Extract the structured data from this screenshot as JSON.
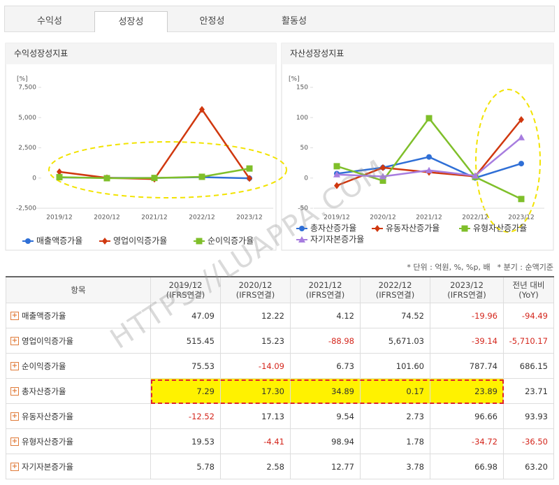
{
  "tabs": {
    "items": [
      "수익성",
      "성장성",
      "안정성",
      "활동성"
    ],
    "active": 1
  },
  "chart_data": [
    {
      "type": "line",
      "title": "수익성장성지표",
      "y_label": "[%]",
      "categories": [
        "2019/12",
        "2020/12",
        "2021/12",
        "2022/12",
        "2023/12"
      ],
      "ylim": [
        -2500,
        7500
      ],
      "yticks": [
        {
          "value": 7500,
          "label": "7,500"
        },
        {
          "value": 5000,
          "label": "5,000"
        },
        {
          "value": 2500,
          "label": "2,500"
        },
        0,
        {
          "value": -2500,
          "label": "-2,500"
        }
      ],
      "series": [
        {
          "name": "매출액증가율",
          "color": "#2f6fd6",
          "marker": "circle",
          "values": [
            47.09,
            12.22,
            4.12,
            74.52,
            -19.96
          ]
        },
        {
          "name": "영업이익증가율",
          "color": "#d0380f",
          "marker": "diamond",
          "values": [
            515.45,
            15.23,
            -88.98,
            5671.03,
            -39.14
          ]
        },
        {
          "name": "순이익증가율",
          "color": "#7fbf2a",
          "marker": "square",
          "values": [
            75.53,
            -14.09,
            6.73,
            101.6,
            787.74
          ]
        }
      ]
    },
    {
      "type": "line",
      "title": "자산성장성지표",
      "y_label": "[%]",
      "categories": [
        "2019/12",
        "2020/12",
        "2021/12",
        "2022/12",
        "2023/12"
      ],
      "ylim": [
        -50,
        150
      ],
      "yticks": [
        150,
        100,
        50,
        0,
        -50
      ],
      "series": [
        {
          "name": "총자산증가율",
          "color": "#2f6fd6",
          "marker": "circle",
          "values": [
            7.29,
            17.3,
            34.89,
            0.17,
            23.89
          ]
        },
        {
          "name": "유동자산증가율",
          "color": "#d0380f",
          "marker": "diamond",
          "values": [
            -12.52,
            17.13,
            9.54,
            2.73,
            96.66
          ]
        },
        {
          "name": "유형자산증가율",
          "color": "#7fbf2a",
          "marker": "square",
          "values": [
            19.53,
            -4.41,
            98.94,
            1.78,
            -34.72
          ]
        },
        {
          "name": "자기자본증가율",
          "color": "#a77ddf",
          "marker": "triangle",
          "values": [
            5.78,
            2.58,
            12.77,
            3.78,
            66.98
          ]
        }
      ]
    }
  ],
  "notes": [
    "* 단위 : 억원, %, %p, 배",
    "* 분기 : 순액기준"
  ],
  "watermark": "HTTPS://LUAPPA.COM",
  "table": {
    "header": "항목",
    "columns": [
      {
        "period": "2019/12",
        "basis": "(IFRS연결)"
      },
      {
        "period": "2020/12",
        "basis": "(IFRS연결)"
      },
      {
        "period": "2021/12",
        "basis": "(IFRS연결)"
      },
      {
        "period": "2022/12",
        "basis": "(IFRS연결)"
      },
      {
        "period": "2023/12",
        "basis": "(IFRS연결)"
      },
      {
        "period": "전년 대비",
        "basis": "(YoY)"
      }
    ],
    "rows": [
      {
        "label": "매출액증가율",
        "cells": [
          "47.09",
          "12.22",
          "4.12",
          "74.52",
          "-19.96",
          "-94.49"
        ]
      },
      {
        "label": "영업이익증가율",
        "cells": [
          "515.45",
          "15.23",
          "-88.98",
          "5,671.03",
          "-39.14",
          "-5,710.17"
        ]
      },
      {
        "label": "순이익증가율",
        "cells": [
          "75.53",
          "-14.09",
          "6.73",
          "101.60",
          "787.74",
          "686.15"
        ]
      },
      {
        "label": "총자산증가율",
        "cells": [
          "7.29",
          "17.30",
          "34.89",
          "0.17",
          "23.89",
          "23.71"
        ],
        "highlight": true
      },
      {
        "label": "유동자산증가율",
        "cells": [
          "-12.52",
          "17.13",
          "9.54",
          "2.73",
          "96.66",
          "93.93"
        ]
      },
      {
        "label": "유형자산증가율",
        "cells": [
          "19.53",
          "-4.41",
          "98.94",
          "1.78",
          "-34.72",
          "-36.50"
        ]
      },
      {
        "label": "자기자본증가율",
        "cells": [
          "5.78",
          "2.58",
          "12.77",
          "3.78",
          "66.98",
          "63.20"
        ]
      }
    ]
  }
}
